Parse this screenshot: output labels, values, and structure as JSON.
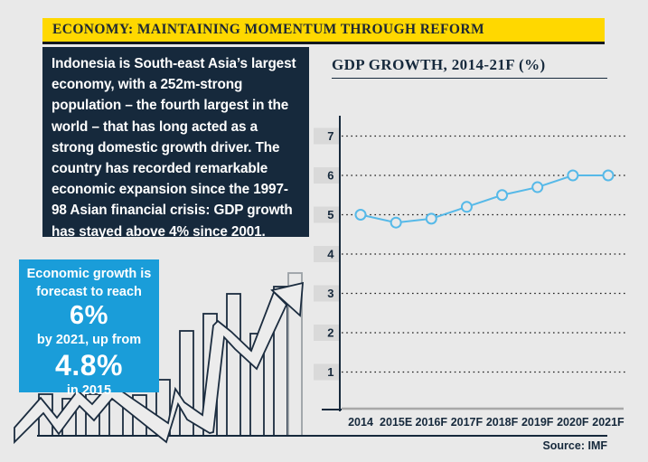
{
  "page": {
    "background": "#e9e9e9"
  },
  "header": {
    "title": "ECONOMY: MAINTAINING MOMENTUM THROUGH REFORM",
    "bar_color": "#ffd800",
    "text_color": "#1d2733"
  },
  "intro": {
    "text": "Indonesia is South-east Asia’s largest economy, with a 252m-strong population – the fourth largest in the world – that has long acted as a strong domestic growth driver. The country has recorded remarkable economic expansion since the 1997-98 Asian financial crisis: GDP growth has stayed above 4% since 2001.",
    "bg_color": "#16293c"
  },
  "callout": {
    "intro_line": "Economic growth is forecast to reach",
    "value1": "6%",
    "mid_line": "by 2021, up from",
    "value2": "4.8%",
    "tail_line": "in 2015",
    "bg_color": "#1a9dd9"
  },
  "chart": {
    "title": "GDP GROWTH, 2014-21F (%)",
    "source": "Source: IMF"
  },
  "chart_data": {
    "type": "line",
    "title": "GDP GROWTH, 2014-21F (%)",
    "categories": [
      "2014",
      "2015E",
      "2016F",
      "2017F",
      "2018F",
      "2019F",
      "2020F",
      "2021F"
    ],
    "values": [
      5.0,
      4.8,
      4.9,
      5.2,
      5.5,
      5.7,
      6.0,
      6.0
    ],
    "ylabel": "",
    "xlabel": "",
    "ylim": [
      0,
      7.5
    ],
    "yticks": [
      1,
      2,
      3,
      4,
      5,
      6,
      7
    ],
    "grid": "dotted-horizontal",
    "legend": "none",
    "line_color": "#56b9e8",
    "marker": "open-circle",
    "tick_box_color": "#d9d9d9",
    "axis_color": "#16293c",
    "source": "Source: IMF"
  }
}
